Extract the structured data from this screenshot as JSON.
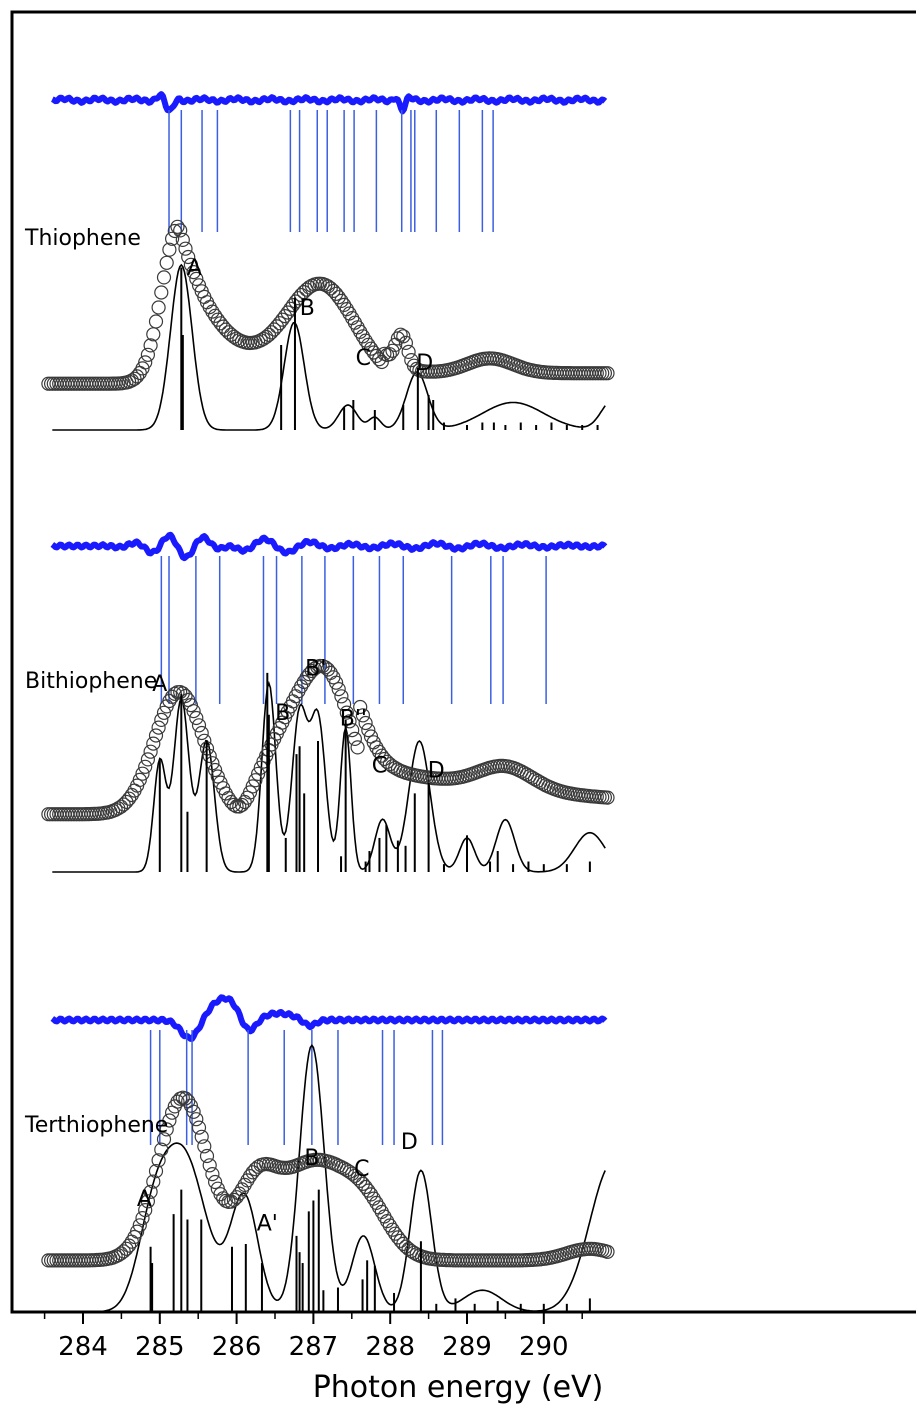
{
  "chart_data": {
    "type": "line",
    "xlabel": "Photon energy (eV)",
    "xlim": [
      283.5,
      290.8
    ],
    "xticks": [
      284,
      285,
      286,
      287,
      288,
      289,
      290
    ],
    "colors": {
      "derivative": "#1a1aff",
      "marker_line": "#3b5fe0",
      "experiment": "#3a3a3a",
      "theory": "#000000"
    },
    "panels": [
      {
        "name": "Thiophene",
        "markers": [
          285.12,
          285.28,
          285.55,
          285.75,
          286.7,
          286.82,
          287.05,
          287.18,
          287.4,
          287.53,
          287.82,
          288.15,
          288.27,
          288.32,
          288.6,
          288.9,
          289.2,
          289.34
        ],
        "stick_x": [
          285.28,
          285.3,
          286.58,
          286.76,
          287.4,
          287.52,
          287.8,
          288.17,
          288.36,
          288.5,
          288.56,
          288.7,
          289.0,
          289.2,
          289.35,
          289.5,
          289.7,
          289.9,
          290.1,
          290.3,
          290.5,
          290.7
        ],
        "stick_h": [
          0.65,
          0.38,
          0.34,
          0.53,
          0.09,
          0.12,
          0.08,
          0.1,
          0.25,
          0.14,
          0.12,
          0.03,
          0.02,
          0.03,
          0.03,
          0.02,
          0.03,
          0.02,
          0.03,
          0.02,
          0.02,
          0.02
        ],
        "labels": [
          {
            "text": "A",
            "x": 285.45,
            "y": 0.62
          },
          {
            "text": "B",
            "x": 286.92,
            "y": 0.46
          },
          {
            "text": "C",
            "x": 287.65,
            "y": 0.26
          },
          {
            "text": "D",
            "x": 288.45,
            "y": 0.24
          }
        ]
      },
      {
        "name": "Bithiophene",
        "markers": [
          285.02,
          285.12,
          285.47,
          285.78,
          286.35,
          286.52,
          286.85,
          287.15,
          287.52,
          287.86,
          288.17,
          288.8,
          289.31,
          289.47,
          290.03
        ],
        "stick_x": [
          285.0,
          285.28,
          285.36,
          285.61,
          286.4,
          286.42,
          286.64,
          286.78,
          286.82,
          286.88,
          287.06,
          287.36,
          287.42,
          287.68,
          287.73,
          287.86,
          287.95,
          288.1,
          288.2,
          288.32,
          288.5,
          288.7,
          289.0,
          289.3,
          289.4,
          289.6,
          289.8,
          290.0,
          290.3,
          290.6
        ],
        "stick_h": [
          0.43,
          0.68,
          0.23,
          0.5,
          0.76,
          0.6,
          0.13,
          0.45,
          0.48,
          0.3,
          0.5,
          0.06,
          0.58,
          0.04,
          0.08,
          0.13,
          0.18,
          0.12,
          0.1,
          0.3,
          0.34,
          0.03,
          0.14,
          0.04,
          0.08,
          0.03,
          0.04,
          0.03,
          0.03,
          0.04
        ],
        "labels": [
          {
            "text": "A",
            "x": 285.0,
            "y": 0.69
          },
          {
            "text": "B",
            "x": 286.6,
            "y": 0.58
          },
          {
            "text": "B'",
            "x": 287.03,
            "y": 0.75
          },
          {
            "text": "B''",
            "x": 287.52,
            "y": 0.56
          },
          {
            "text": "C",
            "x": 287.86,
            "y": 0.38
          },
          {
            "text": "D",
            "x": 288.6,
            "y": 0.36
          }
        ]
      },
      {
        "name": "Terthiophene",
        "markers": [
          284.88,
          285.0,
          285.35,
          285.42,
          286.15,
          286.62,
          286.98,
          287.32,
          287.9,
          288.05,
          288.55,
          288.68
        ],
        "stick_x": [
          284.88,
          284.9,
          285.18,
          285.28,
          285.36,
          285.54,
          285.94,
          286.12,
          286.33,
          286.78,
          286.82,
          286.86,
          286.94,
          287.0,
          287.07,
          287.13,
          287.32,
          287.64,
          287.7,
          287.8,
          288.05,
          288.4,
          288.6,
          288.85,
          289.1,
          289.4,
          289.7,
          290.0,
          290.3,
          290.6
        ],
        "stick_h": [
          0.24,
          0.18,
          0.36,
          0.45,
          0.34,
          0.34,
          0.24,
          0.25,
          0.18,
          0.28,
          0.22,
          0.18,
          0.37,
          0.41,
          0.45,
          0.08,
          0.09,
          0.12,
          0.19,
          0.17,
          0.07,
          0.26,
          0.03,
          0.05,
          0.03,
          0.04,
          0.03,
          0.03,
          0.03,
          0.05
        ],
        "labels": [
          {
            "text": "A",
            "x": 284.8,
            "y": 0.39
          },
          {
            "text": "A'",
            "x": 286.4,
            "y": 0.3
          },
          {
            "text": "B",
            "x": 286.98,
            "y": 0.54
          },
          {
            "text": "C",
            "x": 287.63,
            "y": 0.5
          },
          {
            "text": "D",
            "x": 288.25,
            "y": 0.6
          }
        ]
      }
    ]
  }
}
